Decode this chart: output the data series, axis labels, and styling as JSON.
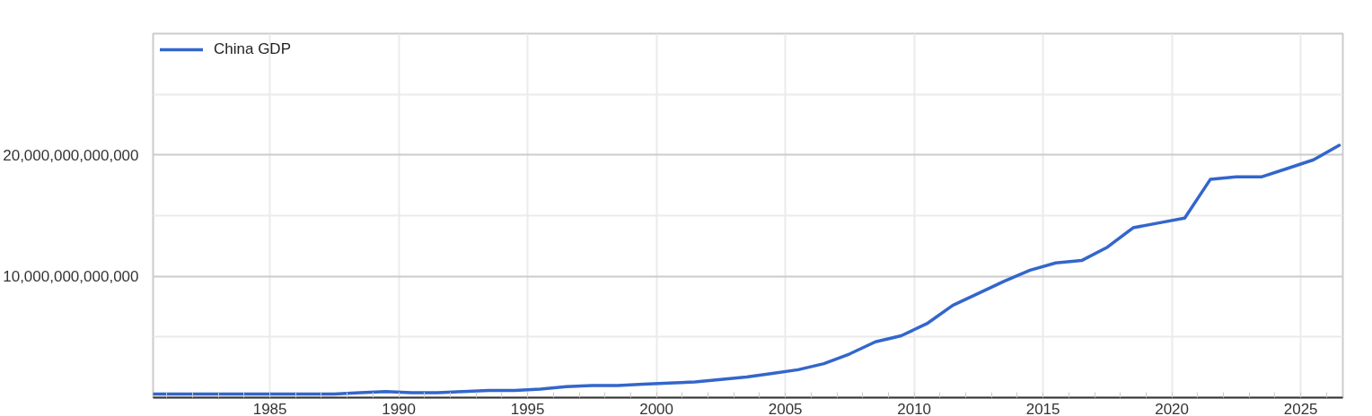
{
  "chart_data": {
    "type": "line",
    "x": [
      "1980-07",
      "1981-07",
      "1982-07",
      "1983-07",
      "1984-07",
      "1985-07",
      "1986-07",
      "1987-07",
      "1988-07",
      "1989-07",
      "1990-07",
      "1991-07",
      "1992-07",
      "1993-07",
      "1994-07",
      "1995-07",
      "1996-07",
      "1997-07",
      "1998-07",
      "1999-07",
      "2000-07",
      "2001-07",
      "2002-07",
      "2003-07",
      "2004-07",
      "2005-07",
      "2006-07",
      "2007-07",
      "2008-07",
      "2009-07",
      "2010-07",
      "2011-07",
      "2012-07",
      "2013-07",
      "2014-07",
      "2015-07",
      "2016-07",
      "2017-07",
      "2018-07",
      "2019-07",
      "2020-07",
      "2021-07",
      "2022-07",
      "2023-07",
      "2024-07",
      "2025-07",
      "2026-07"
    ],
    "series": [
      {
        "name": "China GDP",
        "color": "#3366cc",
        "values": [
          300000000000,
          300000000000,
          300000000000,
          300000000000,
          300000000000,
          300000000000,
          300000000000,
          300000000000,
          400000000000,
          500000000000,
          400000000000,
          400000000000,
          500000000000,
          600000000000,
          600000000000,
          700000000000,
          900000000000,
          1000000000000,
          1000000000000,
          1100000000000,
          1200000000000,
          1300000000000,
          1500000000000,
          1700000000000,
          2000000000000,
          2300000000000,
          2800000000000,
          3600000000000,
          4600000000000,
          5100000000000,
          6100000000000,
          7600000000000,
          8600000000000,
          9600000000000,
          10500000000000,
          11100000000000,
          11300000000000,
          12400000000000,
          14000000000000,
          14400000000000,
          14800000000000,
          18000000000000,
          18200000000000,
          18200000000000,
          18900000000000,
          19600000000000,
          20800000000000
        ]
      }
    ],
    "xlim": [
      "1980-06-20",
      "2026-08-20"
    ],
    "xticks": [
      {
        "value": "1981",
        "label": null
      },
      {
        "value": "1982",
        "label": null
      },
      {
        "value": "1983",
        "label": null
      },
      {
        "value": "1984",
        "label": null
      },
      "1985",
      {
        "value": "1986",
        "label": null
      },
      {
        "value": "1987",
        "label": null
      },
      {
        "value": "1988",
        "label": null
      },
      {
        "value": "1989",
        "label": null
      },
      "1990",
      {
        "value": "1991",
        "label": null
      },
      {
        "value": "1992",
        "label": null
      },
      {
        "value": "1993",
        "label": null
      },
      {
        "value": "1994",
        "label": null
      },
      "1995",
      {
        "value": "1996",
        "label": null
      },
      {
        "value": "1997",
        "label": null
      },
      {
        "value": "1998",
        "label": null
      },
      {
        "value": "1999",
        "label": null
      },
      "2000",
      {
        "value": "2001",
        "label": null
      },
      {
        "value": "2002",
        "label": null
      },
      {
        "value": "2003",
        "label": null
      },
      {
        "value": "2004",
        "label": null
      },
      "2005",
      {
        "value": "2006",
        "label": null
      },
      {
        "value": "2007",
        "label": null
      },
      {
        "value": "2008",
        "label": null
      },
      {
        "value": "2009",
        "label": null
      },
      "2010",
      {
        "value": "2011",
        "label": null
      },
      {
        "value": "2012",
        "label": null
      },
      {
        "value": "2013",
        "label": null
      },
      {
        "value": "2014",
        "label": null
      },
      "2015",
      {
        "value": "2016",
        "label": null
      },
      {
        "value": "2017",
        "label": null
      },
      {
        "value": "2018",
        "label": null
      },
      {
        "value": "2019",
        "label": null
      },
      "2020",
      {
        "value": "2021",
        "label": null
      },
      {
        "value": "2022",
        "label": null
      },
      {
        "value": "2023",
        "label": null
      },
      {
        "value": "2024",
        "label": null
      },
      "2025",
      {
        "value": "2026",
        "label": null
      }
    ],
    "ylim": [
      0,
      30000000000000
    ],
    "yticks": [
      {
        "value": 5000000000000,
        "label": null
      },
      {
        "value": 10000000000000,
        "label": "10,000,000,000,000"
      },
      {
        "value": 15000000000000,
        "label": null
      },
      {
        "value": 20000000000000,
        "label": "20,000,000,000,000"
      },
      {
        "value": 25000000000000,
        "label": null
      }
    ],
    "grid": true,
    "legend": "top left"
  }
}
